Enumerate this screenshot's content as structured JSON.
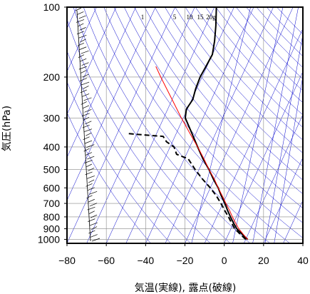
{
  "chart_data": {
    "type": "line",
    "subtype": "skew-T emagram",
    "xlabel": "気温(実線), 露点(破線)",
    "ylabel": "気圧(hPa)",
    "xlim": [
      -80,
      40
    ],
    "ylim": [
      1040,
      100
    ],
    "y_scale": "log",
    "grid": true,
    "x_ticks": [
      -80,
      -60,
      -40,
      -20,
      0,
      20,
      40
    ],
    "x_tick_labels": [
      "−80",
      "−60",
      "−40",
      "−20",
      "0",
      "20",
      "40"
    ],
    "y_ticks": [
      100,
      200,
      300,
      400,
      500,
      600,
      700,
      800,
      900,
      1000
    ],
    "y_tick_labels": [
      "100",
      "200",
      "300",
      "400",
      "500",
      "600",
      "700",
      "800",
      "900",
      "1000"
    ],
    "mixing_ratio_labels": [
      "1",
      "5",
      "10",
      "15",
      "20g"
    ],
    "colors": {
      "temperature": "#000000",
      "dewpoint": "#000000",
      "parcel": "#ff0000",
      "reference_lines": "#0000cc",
      "grid": "#888888"
    },
    "series": [
      {
        "role": "temperature",
        "style": "solid",
        "points": [
          [
            1000,
            11
          ],
          [
            950,
            7
          ],
          [
            900,
            3
          ],
          [
            850,
            0
          ],
          [
            800,
            -3
          ],
          [
            750,
            -6
          ],
          [
            700,
            -9
          ],
          [
            650,
            -12.5
          ],
          [
            600,
            -16
          ],
          [
            550,
            -20.5
          ],
          [
            500,
            -25
          ],
          [
            450,
            -30.5
          ],
          [
            400,
            -36
          ],
          [
            350,
            -42
          ],
          [
            300,
            -49
          ],
          [
            275,
            -50.5
          ],
          [
            250,
            -49.5
          ],
          [
            225,
            -50.5
          ],
          [
            200,
            -51
          ],
          [
            180,
            -50.5
          ],
          [
            160,
            -50
          ],
          [
            140,
            -52
          ],
          [
            120,
            -55
          ],
          [
            100,
            -59
          ]
        ]
      },
      {
        "role": "dewpoint",
        "style": "dashed",
        "points": [
          [
            1000,
            10
          ],
          [
            950,
            6
          ],
          [
            900,
            2
          ],
          [
            850,
            -1
          ],
          [
            800,
            -4
          ],
          [
            750,
            -7.5
          ],
          [
            700,
            -11
          ],
          [
            650,
            -15
          ],
          [
            600,
            -20
          ],
          [
            550,
            -26
          ],
          [
            500,
            -32
          ],
          [
            450,
            -38
          ],
          [
            430,
            -45
          ],
          [
            400,
            -48
          ],
          [
            380,
            -53
          ],
          [
            360,
            -56
          ],
          [
            355,
            -66
          ],
          [
            350,
            -75
          ]
        ]
      },
      {
        "role": "parcel",
        "style": "solid",
        "points": [
          [
            1000,
            11
          ],
          [
            950,
            7.5
          ],
          [
            900,
            4
          ],
          [
            850,
            1
          ],
          [
            800,
            -2
          ],
          [
            750,
            -5
          ],
          [
            700,
            -8.5
          ],
          [
            650,
            -12
          ],
          [
            600,
            -16
          ],
          [
            550,
            -20
          ],
          [
            500,
            -25
          ],
          [
            450,
            -30
          ],
          [
            400,
            -36
          ],
          [
            350,
            -43
          ],
          [
            300,
            -51
          ],
          [
            250,
            -60
          ],
          [
            200,
            -71
          ],
          [
            180,
            -76
          ]
        ]
      }
    ]
  }
}
